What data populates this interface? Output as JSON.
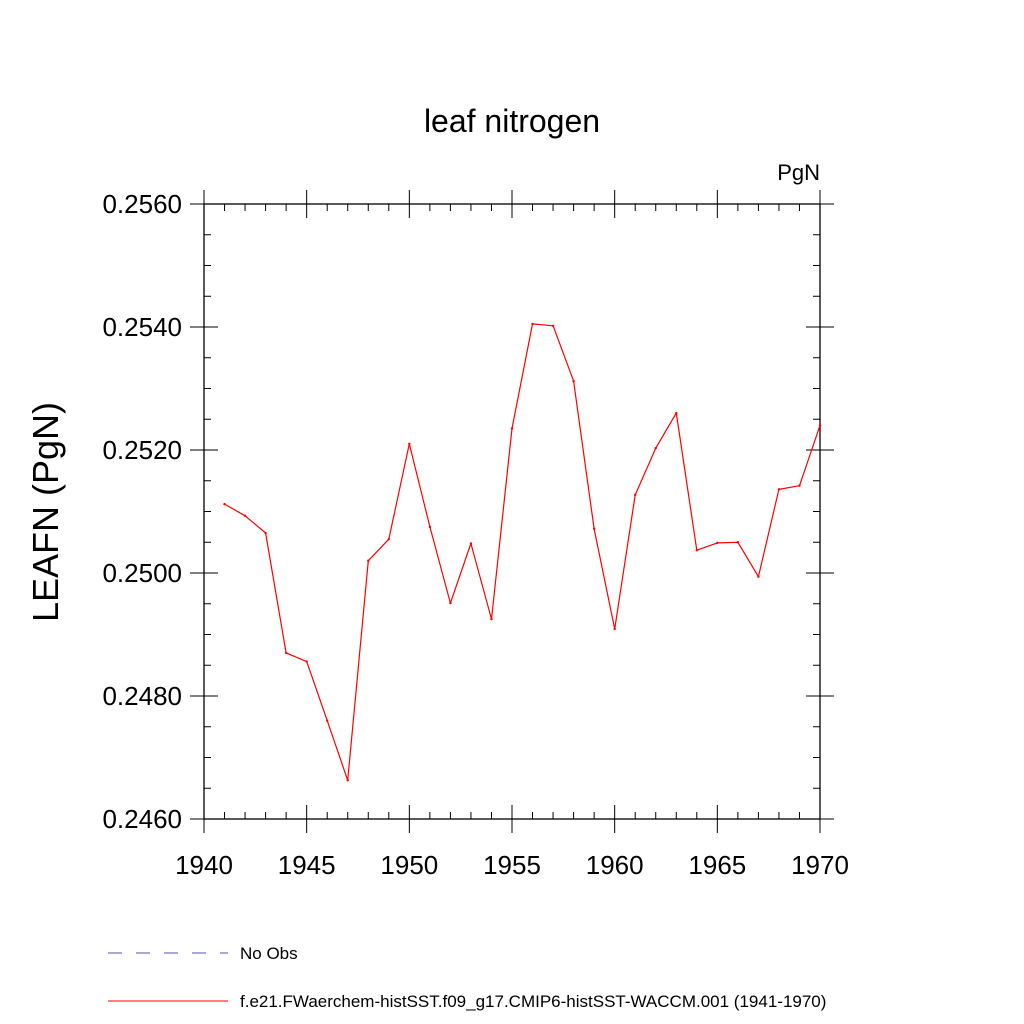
{
  "chart_data": {
    "type": "line",
    "title": "leaf nitrogen",
    "units_label": "PgN",
    "xlabel": "",
    "ylabel": "LEAFN  (PgN)",
    "xlim": [
      1940,
      1970
    ],
    "ylim": [
      0.246,
      0.256
    ],
    "x_ticks": [
      1940,
      1945,
      1950,
      1955,
      1960,
      1965,
      1970
    ],
    "x_tick_labels": [
      "1940",
      "1945",
      "1950",
      "1955",
      "1960",
      "1965",
      "1970"
    ],
    "y_ticks": [
      0.246,
      0.248,
      0.25,
      0.252,
      0.254,
      0.256
    ],
    "y_tick_labels": [
      "0.2460",
      "0.2480",
      "0.2500",
      "0.2520",
      "0.2540",
      "0.2560"
    ],
    "grid": false,
    "legend_position": "bottom",
    "series": [
      {
        "name": "f.e21.FWaerchem-histSST.f09_g17.CMIP6-histSST-WACCM.001 (1941-1970)",
        "color": "#ff0000",
        "line_style": "solid",
        "x": [
          1941,
          1942,
          1943,
          1944,
          1945,
          1946,
          1947,
          1948,
          1949,
          1950,
          1951,
          1952,
          1953,
          1954,
          1955,
          1956,
          1957,
          1958,
          1959,
          1960,
          1961,
          1962,
          1963,
          1964,
          1965,
          1966,
          1967,
          1968,
          1969,
          1970
        ],
        "y": [
          0.25112,
          0.25093,
          0.25065,
          0.2487,
          0.24856,
          0.2476,
          0.24663,
          0.2502,
          0.25055,
          0.2521,
          0.25075,
          0.24951,
          0.25048,
          0.24925,
          0.25235,
          0.25405,
          0.25402,
          0.25312,
          0.25072,
          0.24909,
          0.25127,
          0.25203,
          0.2526,
          0.25037,
          0.25049,
          0.2505,
          0.24994,
          0.25136,
          0.25142,
          0.2524
        ]
      }
    ],
    "legend_entries": [
      {
        "label": "No Obs",
        "color": "#5a4fb5",
        "line_style": "dashed"
      },
      {
        "label": "f.e21.FWaerchem-histSST.f09_g17.CMIP6-histSST-WACCM.001 (1941-1970)",
        "color": "#ff0000",
        "line_style": "solid"
      }
    ]
  }
}
